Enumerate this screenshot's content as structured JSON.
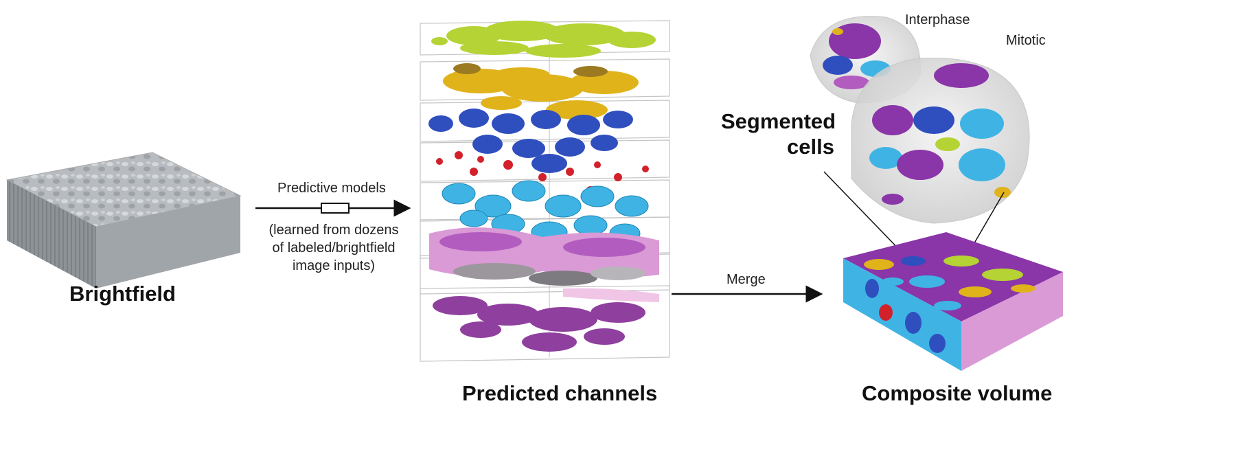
{
  "labels": {
    "brightfield": "Brightfield",
    "predictive_models": "Predictive models",
    "predictive_note": "(learned from dozens of labeled/brightfield image inputs)",
    "predicted_channels": "Predicted channels",
    "merge": "Merge",
    "segmented_cells": "Segmented cells",
    "interphase": "Interphase",
    "mitotic": "Mitotic",
    "composite_volume": "Composite volume"
  },
  "channel_colors": [
    "#b5d334",
    "#e0b31a",
    "#2f4fbf",
    "#d2212b",
    "#3fb4e4",
    "#b35cc0",
    "#9b979c",
    "#8f3f9e"
  ],
  "palette": {
    "arrow": "#111111",
    "box_edge": "#bfbfbf",
    "brightfield_top": "#b9bdc2",
    "brightfield_front": "#8d9297",
    "brightfield_side": "#a2a6ab"
  }
}
